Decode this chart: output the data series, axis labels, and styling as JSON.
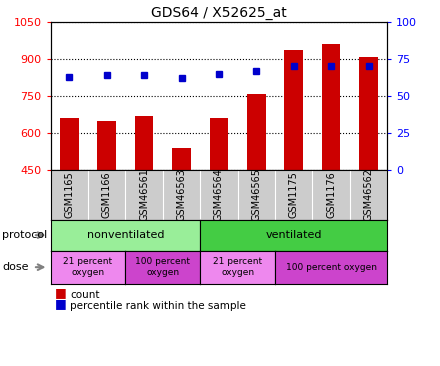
{
  "title": "GDS64 / X52625_at",
  "samples": [
    "GSM1165",
    "GSM1166",
    "GSM46561",
    "GSM46563",
    "GSM46564",
    "GSM46565",
    "GSM1175",
    "GSM1176",
    "GSM46562"
  ],
  "counts": [
    660,
    650,
    670,
    540,
    660,
    760,
    935,
    960,
    910
  ],
  "percentiles": [
    63,
    64,
    64,
    62,
    65,
    67,
    70,
    70,
    70
  ],
  "ylim_left": [
    450,
    1050
  ],
  "ylim_right": [
    0,
    100
  ],
  "yticks_left": [
    450,
    600,
    750,
    900,
    1050
  ],
  "yticks_right": [
    0,
    25,
    50,
    75,
    100
  ],
  "bar_color": "#cc0000",
  "dot_color": "#0000cc",
  "protocol_nonvent_label": "nonventilated",
  "protocol_nonvent_color": "#99ee99",
  "protocol_nonvent_n": 4,
  "protocol_vent_label": "ventilated",
  "protocol_vent_color": "#44cc44",
  "protocol_vent_n": 5,
  "dose_groups": [
    {
      "label": "21 percent\noxygen",
      "color": "#ee88ee",
      "s1": 0,
      "s2": 2
    },
    {
      "label": "100 percent\noxygen",
      "color": "#cc44cc",
      "s1": 2,
      "s2": 4
    },
    {
      "label": "21 percent\noxygen",
      "color": "#ee88ee",
      "s1": 4,
      "s2": 6
    },
    {
      "label": "100 percent oxygen",
      "color": "#cc44cc",
      "s1": 6,
      "s2": 9
    }
  ],
  "legend_items": [
    {
      "label": "count",
      "color": "#cc0000"
    },
    {
      "label": "percentile rank within the sample",
      "color": "#0000cc"
    }
  ],
  "xtick_bg_color": "#cccccc",
  "fig_width": 4.4,
  "fig_height": 3.66,
  "dpi": 100
}
